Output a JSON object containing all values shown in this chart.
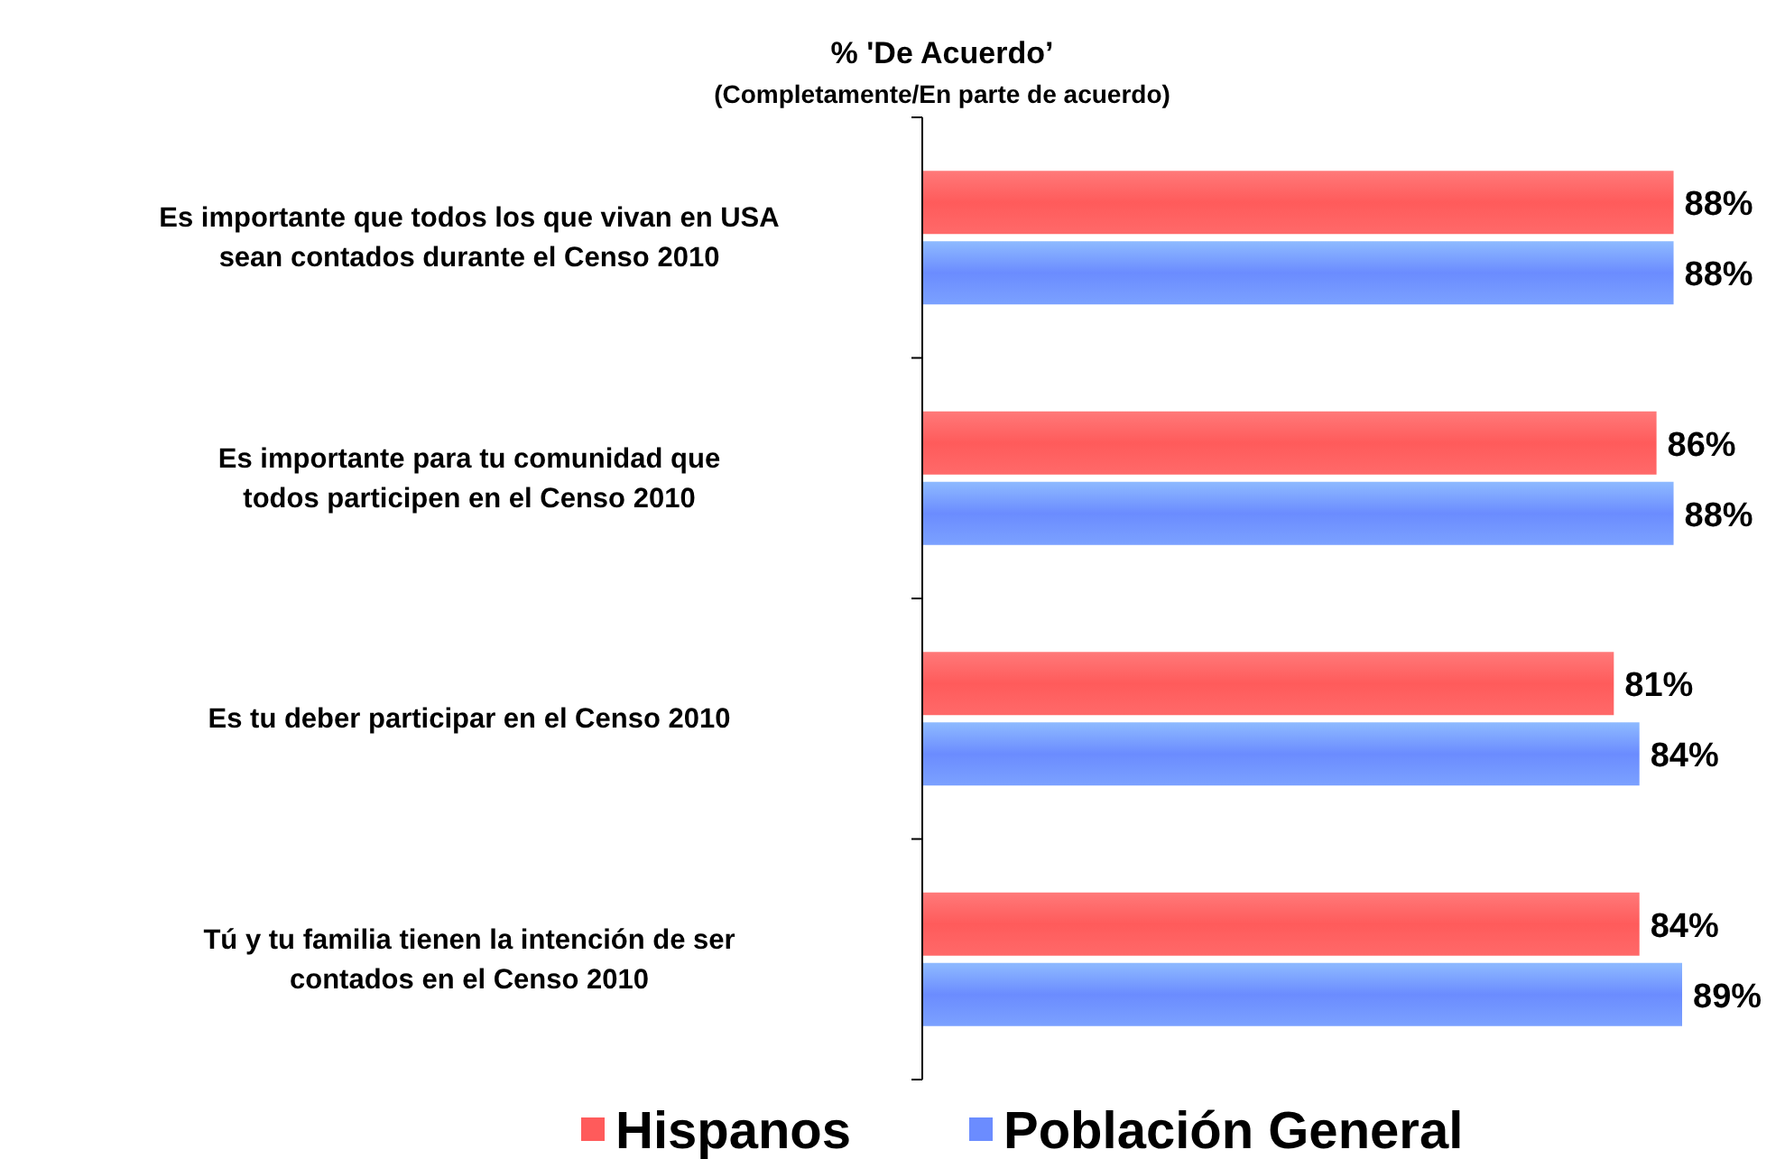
{
  "chart_data": {
    "type": "bar",
    "orientation": "horizontal",
    "title": "% 'De Acuerdo’",
    "subtitle": "(Completamente/En parte de acuerdo)",
    "categories": [
      "Es importante que todos los que vivan en USA\nsean contados durante el Censo 2010",
      "Es importante para tu comunidad que\ntodos participen en el Censo 2010",
      "Es tu deber participar en el Censo 2010",
      "Tú y tu familia tienen la intención de ser\ncontados en el Censo 2010"
    ],
    "series": [
      {
        "name": "Hispanos",
        "color": "#ff5b5b",
        "values": [
          88,
          86,
          81,
          84
        ],
        "value_labels": [
          "88%",
          "86%",
          "81%",
          "84%"
        ]
      },
      {
        "name": "Población General",
        "color": "#6b8cff",
        "values": [
          88,
          88,
          84,
          89
        ],
        "value_labels": [
          "88%",
          "88%",
          "84%",
          "89%"
        ]
      }
    ],
    "legend": "bottom"
  }
}
